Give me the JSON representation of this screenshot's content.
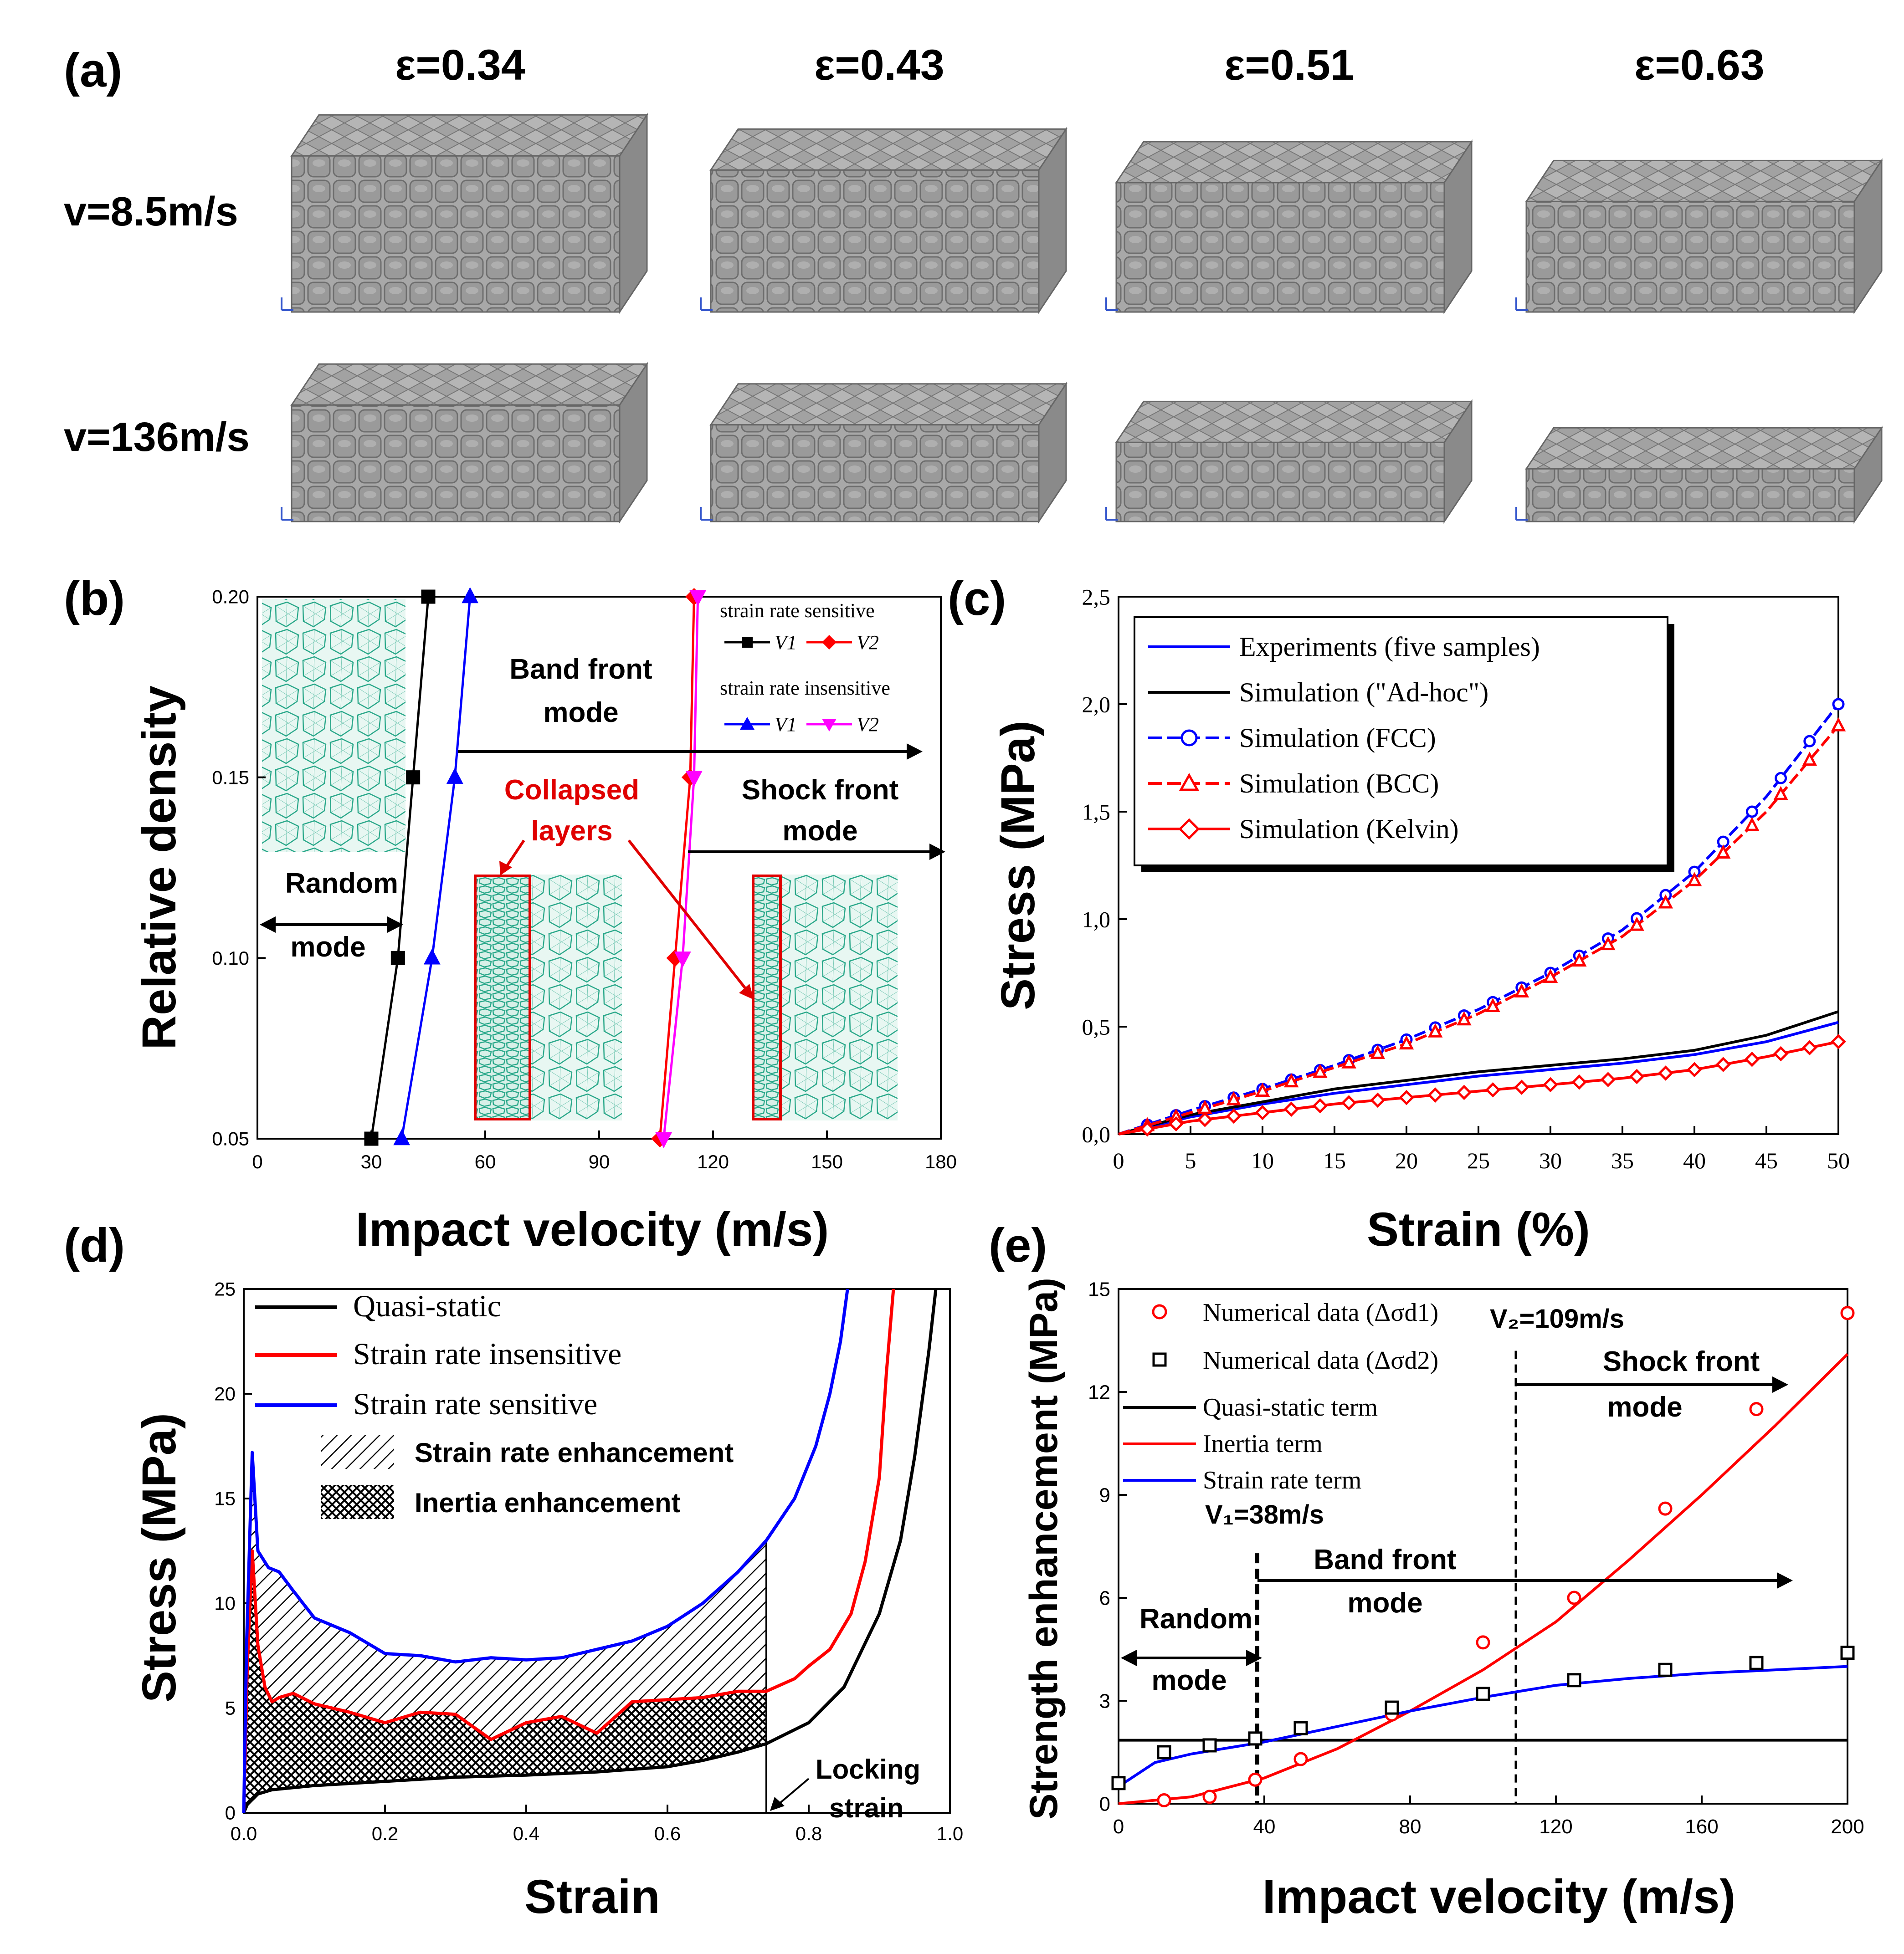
{
  "figure": {
    "panel_labels": [
      "(a)",
      "(b)",
      "(c)",
      "(d)",
      "(e)"
    ]
  },
  "panel_a": {
    "strain_labels": [
      "ε=0.34",
      "ε=0.43",
      "ε=0.51",
      "ε=0.63"
    ],
    "velocity_labels": [
      "v=8.5m/s",
      "v=136m/s"
    ],
    "cell_color": "#9a9a9a",
    "compression": [
      [
        0.34,
        0.43,
        0.51,
        0.63
      ],
      [
        0.34,
        0.43,
        0.51,
        0.63
      ]
    ]
  },
  "chart_data": [
    {
      "id": "b",
      "type": "line",
      "xlabel": "Impact velocity (m/s)",
      "ylabel": "Relative density",
      "xlim": [
        0,
        180
      ],
      "ylim": [
        0.05,
        0.2
      ],
      "xticks": [
        "0",
        "30",
        "60",
        "90",
        "120",
        "150",
        "180"
      ],
      "yticks": [
        "0.05",
        "0.10",
        "0.15",
        "0.20"
      ],
      "legend_groups": [
        "strain rate sensitive",
        "strain rate insensitive"
      ],
      "series": [
        {
          "name": "V1",
          "group": "strain rate sensitive",
          "color": "#000000",
          "marker": "square",
          "x": [
            30,
            37,
            41,
            45
          ],
          "y": [
            0.05,
            0.1,
            0.15,
            0.2
          ]
        },
        {
          "name": "V2",
          "group": "strain rate sensitive",
          "color": "#ff0000",
          "marker": "diamond",
          "x": [
            106,
            110,
            114,
            115
          ],
          "y": [
            0.05,
            0.1,
            0.15,
            0.2
          ]
        },
        {
          "name": "V1",
          "group": "strain rate insensitive",
          "color": "#0000ff",
          "marker": "triangle",
          "x": [
            38,
            46,
            52,
            56
          ],
          "y": [
            0.05,
            0.1,
            0.15,
            0.2
          ]
        },
        {
          "name": "V2",
          "group": "strain rate insensitive",
          "color": "#ff00ff",
          "marker": "triangle-down",
          "x": [
            107,
            112,
            115,
            116
          ],
          "y": [
            0.05,
            0.1,
            0.15,
            0.2
          ]
        }
      ],
      "annotations": {
        "band": [
          "Band front",
          "mode"
        ],
        "collapsed": [
          "Collapsed",
          "layers"
        ],
        "shock": [
          "Shock front",
          "mode"
        ],
        "random": [
          "Random",
          "mode"
        ]
      },
      "inset_color": "#2aa88a"
    },
    {
      "id": "c",
      "type": "line",
      "xlabel": "Strain (%)",
      "ylabel": "Stress (MPa)",
      "xlim": [
        0,
        50
      ],
      "ylim": [
        0,
        2.5
      ],
      "xticks": [
        "0",
        "5",
        "10",
        "15",
        "20",
        "25",
        "30",
        "35",
        "40",
        "45",
        "50"
      ],
      "yticks": [
        "0,0",
        "0,5",
        "1,0",
        "1,5",
        "2,0",
        "2,5"
      ],
      "x": [
        0,
        5,
        10,
        15,
        20,
        25,
        30,
        35,
        40,
        45,
        50
      ],
      "series": [
        {
          "name": "Experiments (five samples)",
          "color": "#0000ff",
          "marker": "none",
          "values": [
            0,
            0.08,
            0.14,
            0.19,
            0.23,
            0.27,
            0.3,
            0.33,
            0.37,
            0.43,
            0.52
          ]
        },
        {
          "name": "Simulation (\"Ad-hoc\")",
          "color": "#000000",
          "marker": "none",
          "values": [
            0,
            0.09,
            0.15,
            0.21,
            0.25,
            0.29,
            0.32,
            0.35,
            0.39,
            0.46,
            0.57
          ]
        },
        {
          "name": "Simulation (FCC)",
          "color": "#0000ff",
          "marker": "circle",
          "dashed": true,
          "values": [
            0,
            0.11,
            0.21,
            0.32,
            0.44,
            0.58,
            0.75,
            0.95,
            1.22,
            1.57,
            2.0
          ]
        },
        {
          "name": "Simulation (BCC)",
          "color": "#ff0000",
          "marker": "triangle",
          "dashed": true,
          "values": [
            0,
            0.1,
            0.2,
            0.31,
            0.42,
            0.56,
            0.73,
            0.92,
            1.18,
            1.5,
            1.9
          ]
        },
        {
          "name": "Simulation (Kelvin)",
          "color": "#ff0000",
          "marker": "diamond",
          "values": [
            0,
            0.06,
            0.1,
            0.14,
            0.17,
            0.2,
            0.23,
            0.26,
            0.3,
            0.36,
            0.43
          ]
        }
      ]
    },
    {
      "id": "d",
      "type": "line",
      "xlabel": "Strain",
      "ylabel": "Stress (MPa)",
      "xlim": [
        0,
        1
      ],
      "ylim": [
        0,
        25
      ],
      "xticks": [
        "0.0",
        "0.2",
        "0.4",
        "0.6",
        "0.8",
        "1.0"
      ],
      "yticks": [
        "0",
        "5",
        "10",
        "15",
        "20",
        "25"
      ],
      "series": [
        {
          "name": "Quasi-static",
          "color": "#000000",
          "x": [
            0,
            0.005,
            0.02,
            0.04,
            0.1,
            0.2,
            0.3,
            0.4,
            0.5,
            0.6,
            0.65,
            0.7,
            0.74,
            0.8,
            0.85,
            0.9,
            0.93,
            0.95,
            0.97,
            0.98
          ],
          "values": [
            0,
            0.4,
            0.9,
            1.1,
            1.3,
            1.5,
            1.7,
            1.8,
            1.95,
            2.2,
            2.5,
            2.9,
            3.3,
            4.3,
            6.0,
            9.5,
            13,
            17,
            22,
            25
          ]
        },
        {
          "name": "Strain rate insensitive",
          "color": "#ff0000",
          "x": [
            0,
            0.005,
            0.012,
            0.02,
            0.03,
            0.04,
            0.05,
            0.07,
            0.1,
            0.15,
            0.2,
            0.25,
            0.3,
            0.35,
            0.4,
            0.45,
            0.5,
            0.55,
            0.6,
            0.65,
            0.7,
            0.74,
            0.78,
            0.8,
            0.83,
            0.86,
            0.88,
            0.9,
            0.91,
            0.92
          ],
          "values": [
            0,
            7.0,
            12.5,
            8.0,
            6.0,
            5.3,
            5.5,
            5.7,
            5.2,
            4.8,
            4.3,
            4.8,
            4.7,
            3.5,
            4.3,
            4.6,
            3.8,
            5.3,
            5.4,
            5.5,
            5.8,
            5.8,
            6.4,
            7.0,
            7.8,
            9.5,
            12,
            16,
            21,
            25
          ]
        },
        {
          "name": "Strain rate sensitive",
          "color": "#0000ff",
          "x": [
            0,
            0.004,
            0.012,
            0.02,
            0.035,
            0.05,
            0.07,
            0.1,
            0.15,
            0.2,
            0.25,
            0.3,
            0.35,
            0.4,
            0.45,
            0.5,
            0.55,
            0.6,
            0.65,
            0.7,
            0.74,
            0.78,
            0.81,
            0.83,
            0.845,
            0.855
          ],
          "values": [
            0,
            8.0,
            17.2,
            12.5,
            11.7,
            11.5,
            10.6,
            9.3,
            8.6,
            7.6,
            7.5,
            7.2,
            7.4,
            7.3,
            7.4,
            7.8,
            8.2,
            8.9,
            10.0,
            11.5,
            13.0,
            15.0,
            17.5,
            20,
            22.5,
            25
          ]
        }
      ],
      "legend_extra": [
        "Strain rate enhancement",
        "Inertia enhancement"
      ],
      "locking_strain_value": 0.74,
      "annotation": [
        "Locking",
        "strain"
      ]
    },
    {
      "id": "e",
      "type": "scatter",
      "xlabel": "Impact velocity (m/s)",
      "ylabel": "Strength enhancement (MPa)",
      "xlim": [
        0,
        200
      ],
      "ylim": [
        0,
        15
      ],
      "xticks": [
        "0",
        "40",
        "80",
        "120",
        "160",
        "200"
      ],
      "yticks": [
        "0",
        "3",
        "6",
        "9",
        "12",
        "15"
      ],
      "points": [
        {
          "name": "Numerical data (Δσd1)",
          "color": "#ff0000",
          "marker": "circle",
          "x": [
            12.5,
            25,
            37.5,
            50,
            75,
            100,
            125,
            150,
            175,
            200
          ],
          "values": [
            0.1,
            0.2,
            0.7,
            1.3,
            2.6,
            4.7,
            6.0,
            8.6,
            11.5,
            14.3
          ]
        },
        {
          "name": "Numerical data (Δσd2)",
          "color": "#000000",
          "marker": "square",
          "x": [
            0,
            12.5,
            25,
            37.5,
            50,
            75,
            100,
            125,
            150,
            175,
            200
          ],
          "values": [
            0.6,
            1.5,
            1.7,
            1.9,
            2.2,
            2.8,
            3.2,
            3.6,
            3.9,
            4.1,
            4.4
          ]
        }
      ],
      "lines": [
        {
          "name": "Quasi-static term",
          "color": "#000000",
          "x": [
            0,
            200
          ],
          "values": [
            1.85,
            1.85
          ]
        },
        {
          "name": "Inertia term",
          "color": "#ff0000",
          "x": [
            0,
            20,
            40,
            60,
            80,
            100,
            120,
            140,
            160,
            180,
            200
          ],
          "values": [
            0,
            0.2,
            0.75,
            1.6,
            2.7,
            3.9,
            5.3,
            7.1,
            9.0,
            11.0,
            13.1
          ]
        },
        {
          "name": "Strain rate term",
          "color": "#0000ff",
          "x": [
            0,
            10,
            20,
            40,
            60,
            80,
            100,
            120,
            140,
            160,
            180,
            200
          ],
          "values": [
            0.5,
            1.2,
            1.45,
            1.8,
            2.25,
            2.7,
            3.1,
            3.45,
            3.65,
            3.8,
            3.9,
            4.0
          ]
        }
      ],
      "v1": {
        "value": 38,
        "label": "V₁=38m/s"
      },
      "v2": {
        "value": 109,
        "label": "V₂=109m/s"
      },
      "annotations": {
        "random": [
          "Random",
          "mode"
        ],
        "band": [
          "Band front",
          "mode"
        ],
        "shock": [
          "Shock front",
          "mode"
        ]
      }
    }
  ]
}
